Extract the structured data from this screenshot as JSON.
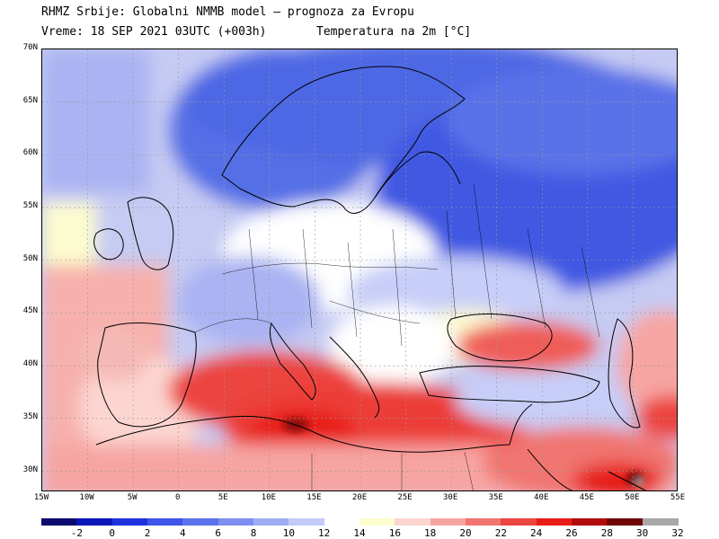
{
  "header": {
    "title": "RHMZ Srbije: Globalni NMMB model — prognoza za Evropu",
    "time": "Vreme: 18 SEP 2021 03UTC (+003h)",
    "variable": "Temperatura na 2m [°C]"
  },
  "map": {
    "lat_labels": [
      "70N",
      "65N",
      "60N",
      "55N",
      "50N",
      "45N",
      "40N",
      "35N",
      "30N"
    ],
    "lon_labels": [
      "15W",
      "10W",
      "5W",
      "0",
      "5E",
      "10E",
      "15E",
      "20E",
      "25E",
      "30E",
      "35E",
      "40E",
      "45E",
      "50E",
      "55E"
    ],
    "extent": {
      "lon_min": -15,
      "lon_max": 55,
      "lat_min": 28,
      "lat_max": 70
    }
  },
  "colorbar": {
    "labels": [
      "-2",
      "0",
      "2",
      "4",
      "6",
      "8",
      "10",
      "12",
      "14",
      "16",
      "18",
      "20",
      "22",
      "24",
      "26",
      "28",
      "30",
      "32"
    ],
    "colors": [
      "#0c0a6e",
      "#0b16b8",
      "#1f32e0",
      "#3d55e8",
      "#5b72ea",
      "#7c8ff0",
      "#9eacf4",
      "#c3cbf8",
      "#ffffff",
      "#fdfccf",
      "#fcd5d0",
      "#f7a5a2",
      "#f17470",
      "#ec4540",
      "#e81c16",
      "#b10c0c",
      "#6e0505",
      "#a8a8a8"
    ]
  }
}
